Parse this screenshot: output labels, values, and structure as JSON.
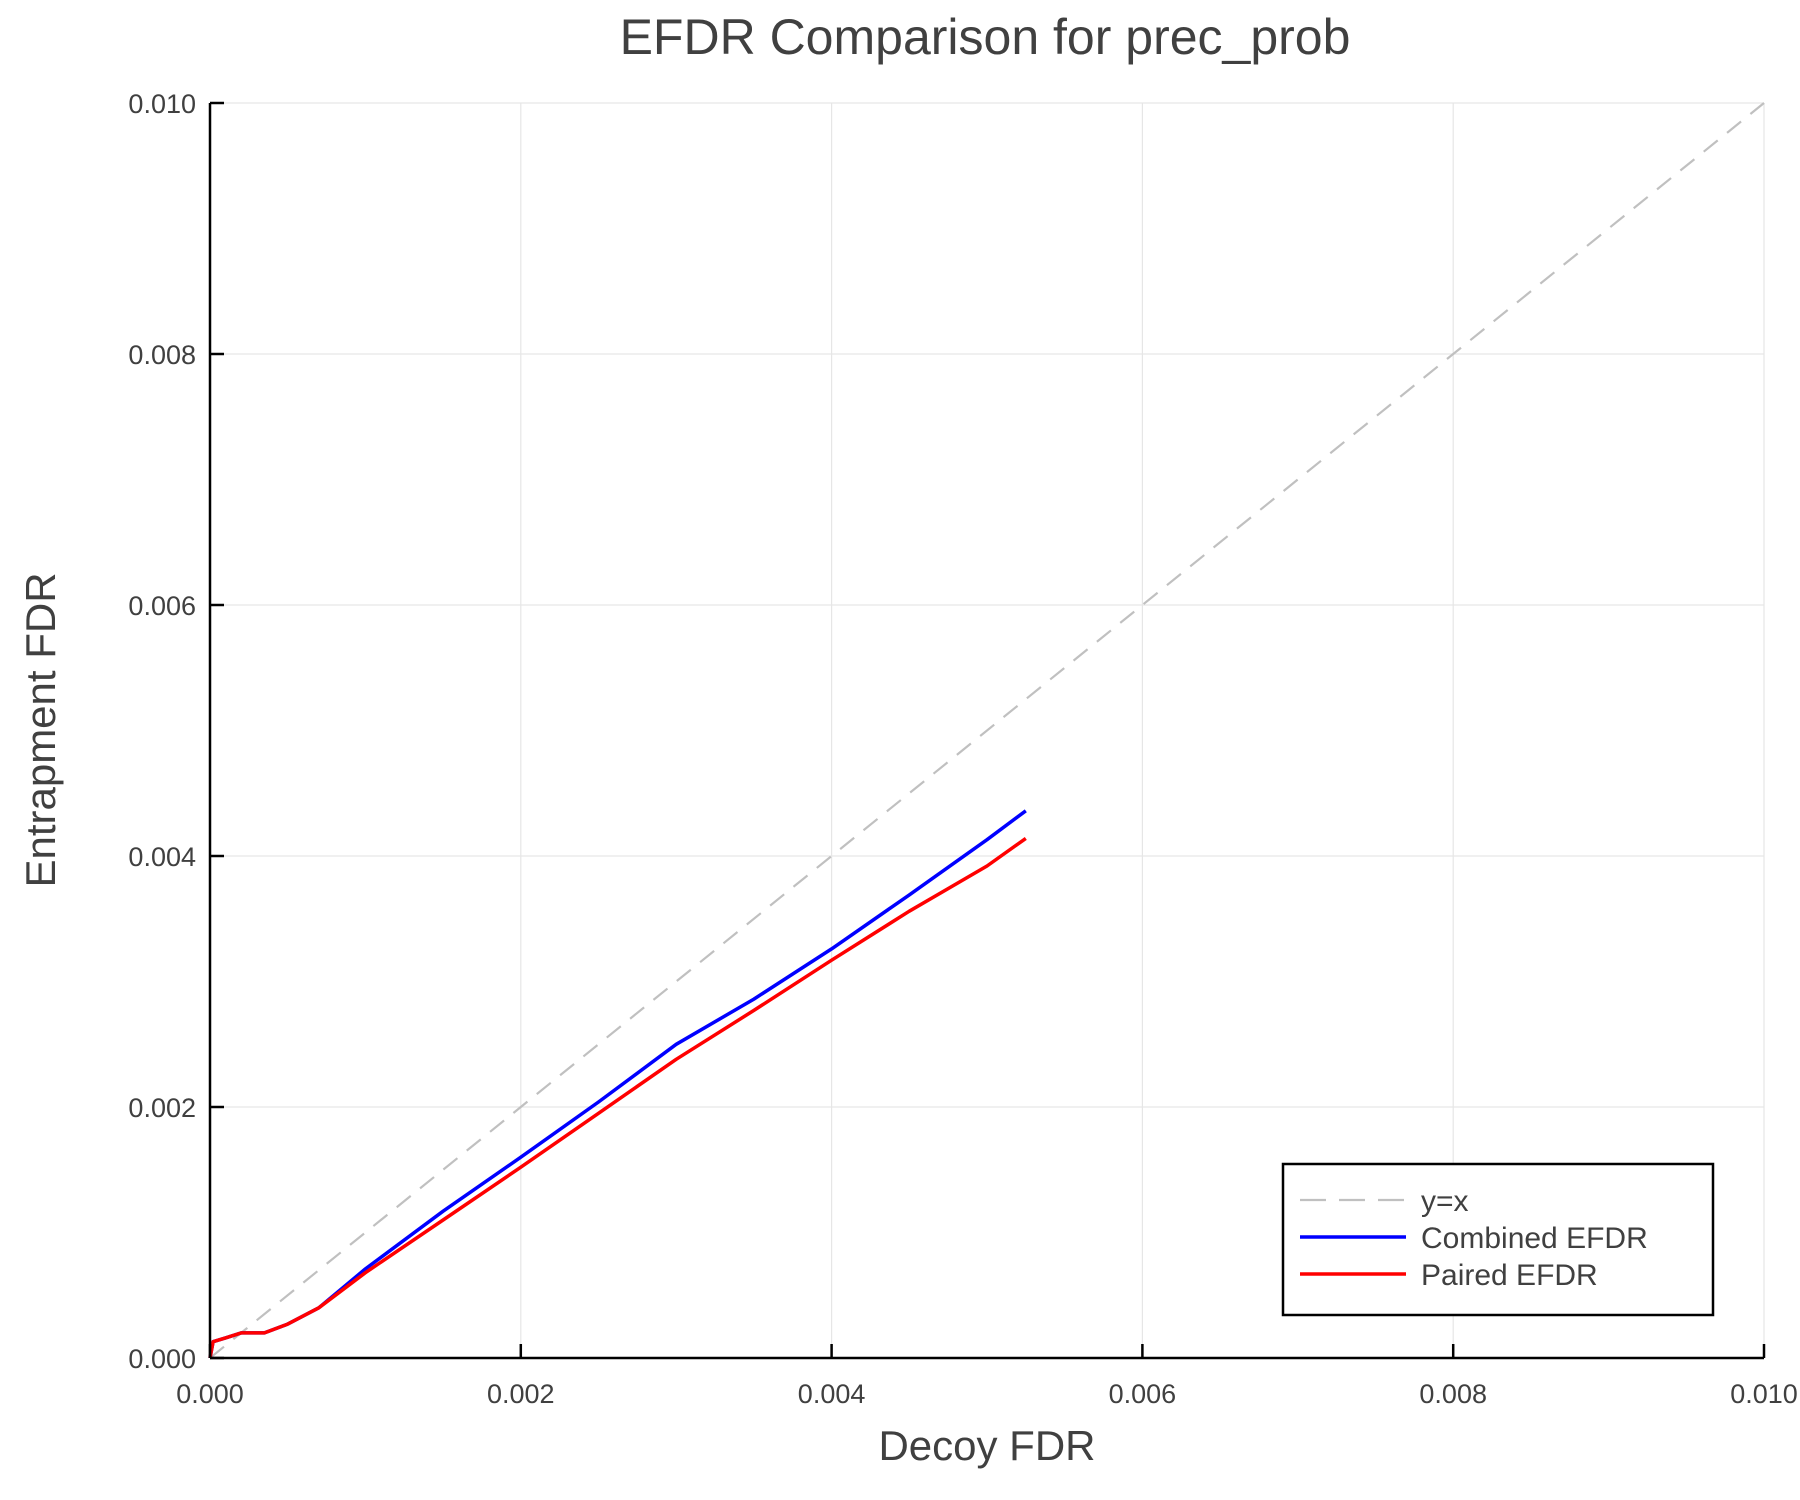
{
  "chart_data": {
    "type": "line",
    "title": "EFDR Comparison for prec_prob",
    "xlabel": "Decoy FDR",
    "ylabel": "Entrapment FDR",
    "xlim": [
      0,
      0.01
    ],
    "ylim": [
      0,
      0.01
    ],
    "xticks": [
      "0.000",
      "0.002",
      "0.004",
      "0.006",
      "0.008",
      "0.010"
    ],
    "yticks": [
      "0.000",
      "0.002",
      "0.004",
      "0.006",
      "0.008",
      "0.010"
    ],
    "grid": true,
    "legend_position": "bottom-right",
    "series": [
      {
        "name": "y=x",
        "color": "#c0c0c0",
        "dash": true,
        "x": [
          0,
          0.01
        ],
        "y": [
          0,
          0.01
        ]
      },
      {
        "name": "Combined EFDR",
        "color": "#0000ff",
        "x": [
          0,
          2e-05,
          0.0001,
          0.0002,
          0.00035,
          0.0005,
          0.0007,
          0.001,
          0.0015,
          0.002,
          0.0025,
          0.003,
          0.0035,
          0.004,
          0.0045,
          0.005,
          0.00525
        ],
        "y": [
          0,
          0.00013,
          0.00016,
          0.0002,
          0.0002,
          0.00027,
          0.0004,
          0.00071,
          0.00117,
          0.0016,
          0.00204,
          0.0025,
          0.00286,
          0.00326,
          0.00369,
          0.00413,
          0.00436
        ]
      },
      {
        "name": "Paired EFDR",
        "color": "#ff0000",
        "x": [
          0,
          2e-05,
          0.0001,
          0.0002,
          0.00035,
          0.0005,
          0.0007,
          0.001,
          0.0015,
          0.002,
          0.0025,
          0.003,
          0.0035,
          0.004,
          0.0045,
          0.005,
          0.00525
        ],
        "y": [
          0,
          0.00013,
          0.00016,
          0.0002,
          0.0002,
          0.00027,
          0.0004,
          0.00068,
          0.0011,
          0.00152,
          0.00195,
          0.00238,
          0.00277,
          0.00317,
          0.00356,
          0.00392,
          0.00414
        ]
      }
    ]
  }
}
